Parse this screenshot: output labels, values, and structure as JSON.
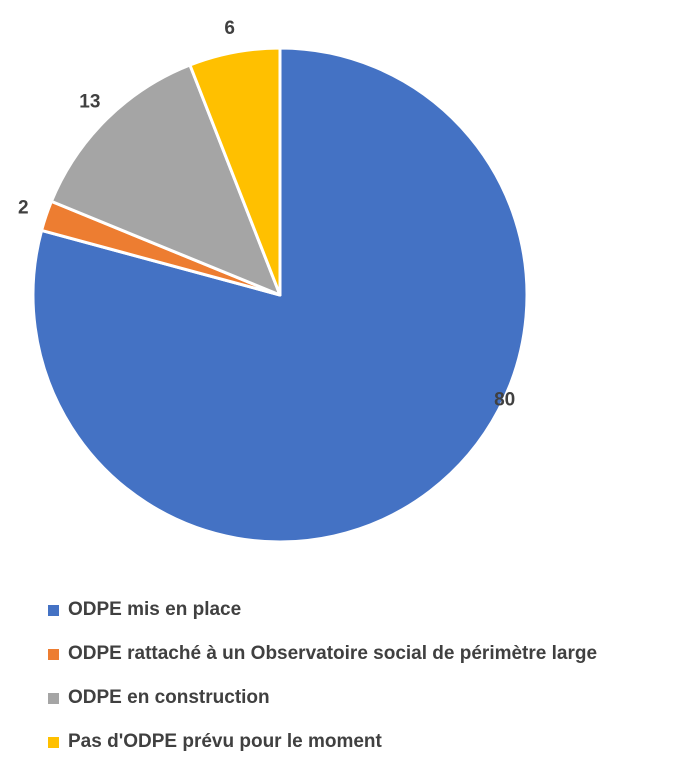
{
  "chart_data": {
    "type": "pie",
    "title": "",
    "start_angle_deg": 0,
    "direction": "clockwise",
    "slices": [
      {
        "name": "ODPE mis en place",
        "value": 80,
        "color": "#4472C4"
      },
      {
        "name": "ODPE rattaché à un Observatoire social de périmètre large",
        "value": 2,
        "color": "#ED7D31"
      },
      {
        "name": "ODPE en construction",
        "value": 13,
        "color": "#A5A5A5"
      },
      {
        "name": "Pas d'ODPE prévu pour le moment",
        "value": 6,
        "color": "#FFC000"
      }
    ],
    "legend_position": "bottom",
    "slice_border_color": "#FFFFFF"
  }
}
